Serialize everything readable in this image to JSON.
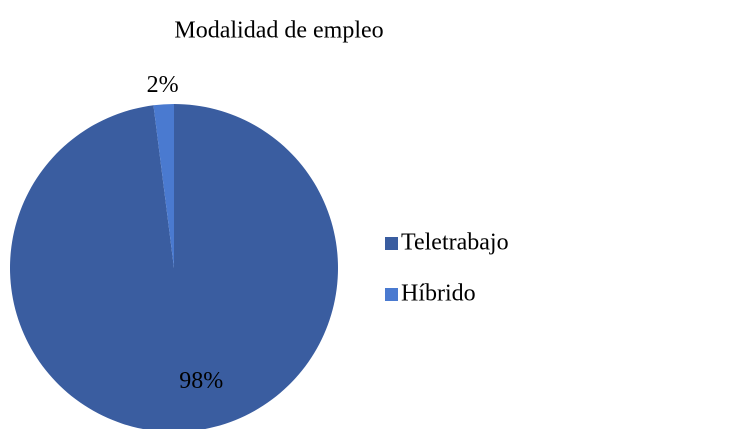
{
  "chart_data": {
    "type": "pie",
    "title": "Modalidad de empleo",
    "categories": [
      "Teletrabajo",
      "Híbrido"
    ],
    "values": [
      98,
      2
    ],
    "value_labels": [
      "98%",
      "2%"
    ],
    "colors": [
      "#3a5da0",
      "#4a7ad0"
    ],
    "legend": "right"
  }
}
